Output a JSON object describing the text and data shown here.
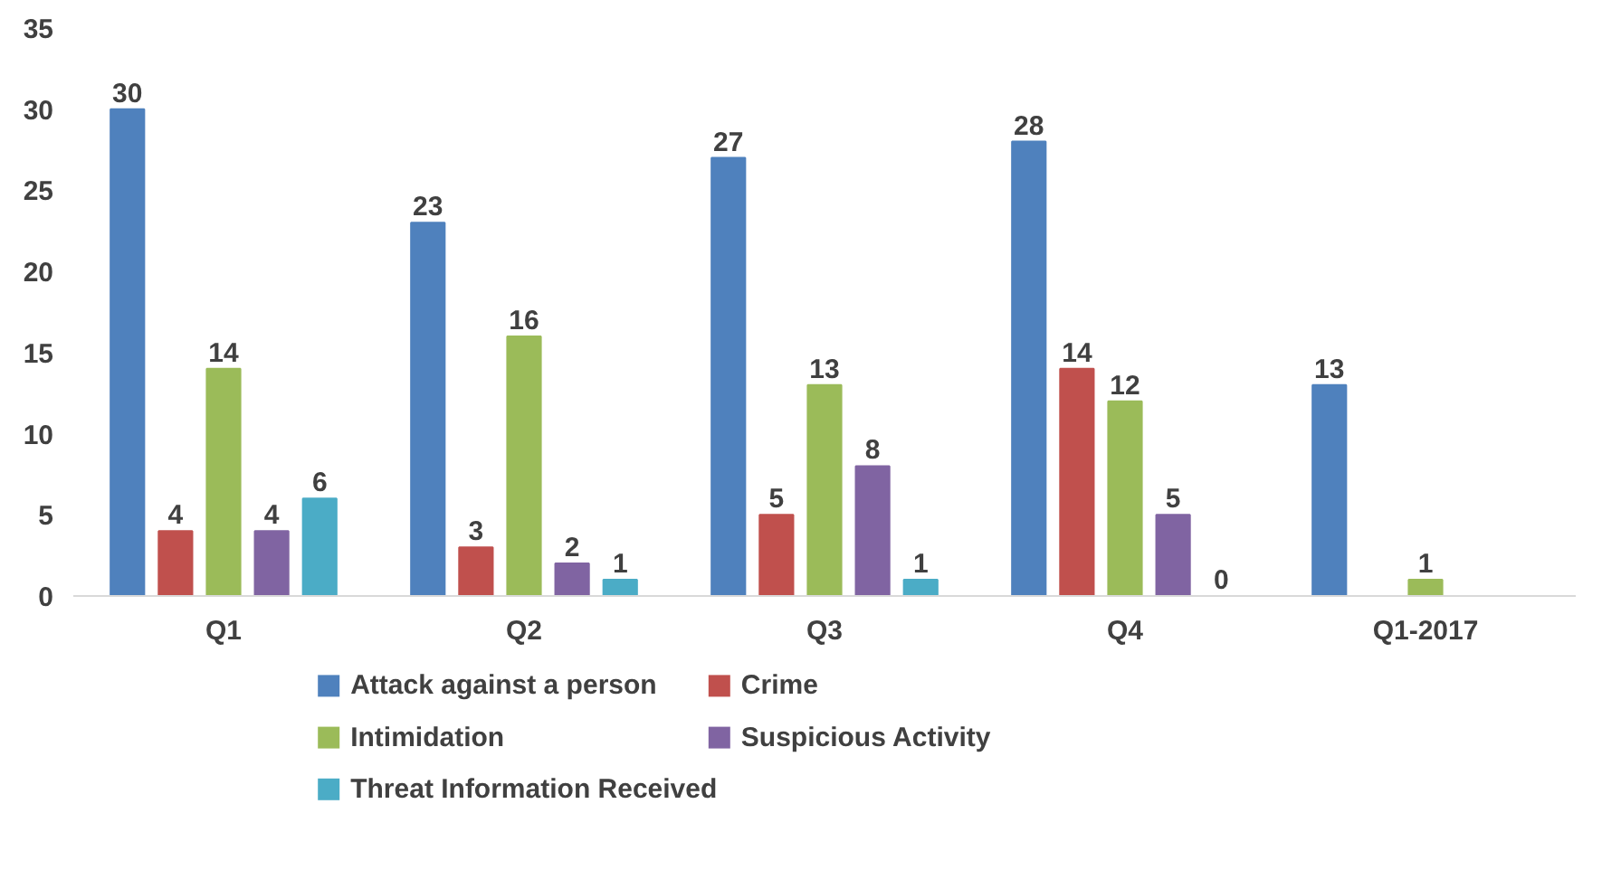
{
  "chart_data": {
    "type": "bar",
    "categories": [
      "Q1",
      "Q2",
      "Q3",
      "Q4",
      "Q1-2017"
    ],
    "series": [
      {
        "name": "Attack against a person",
        "color": "#4f81bd",
        "values": [
          30,
          23,
          27,
          28,
          13
        ]
      },
      {
        "name": "Crime",
        "color": "#c0504d",
        "values": [
          4,
          3,
          5,
          14,
          null
        ]
      },
      {
        "name": "Intimidation",
        "color": "#9bbb59",
        "values": [
          14,
          16,
          13,
          12,
          1
        ]
      },
      {
        "name": "Suspicious Activity",
        "color": "#8064a2",
        "values": [
          4,
          2,
          8,
          5,
          null
        ]
      },
      {
        "name": "Threat Information Received",
        "color": "#4bacc6",
        "values": [
          6,
          1,
          1,
          0,
          null
        ]
      }
    ],
    "ylim": [
      0,
      35
    ],
    "yticks": [
      0,
      5,
      10,
      15,
      20,
      25,
      30,
      35
    ],
    "grid": false,
    "legend": "bottom",
    "data_labels": true
  }
}
